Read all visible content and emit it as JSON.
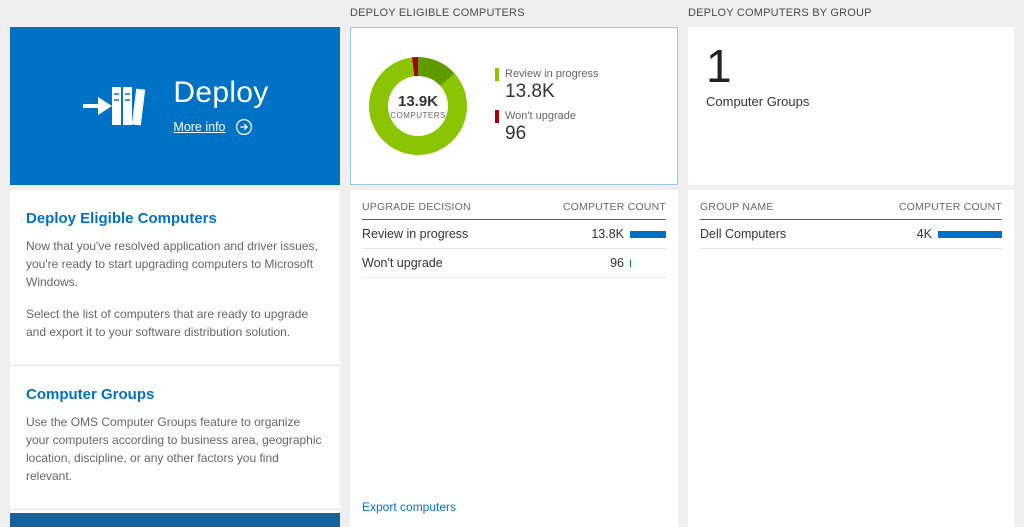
{
  "colors": {
    "accent_blue": "#0072c6",
    "tile_footer_blue": "#15639c",
    "count_bar_blue": "#0072c6",
    "chart_green": "#8bc400",
    "chart_dark_green": "#5f9b00",
    "chart_red": "#a80000"
  },
  "left_panel": {
    "tile": {
      "title": "Deploy",
      "more_info": "More info",
      "bg": "#0072c6"
    },
    "sections": [
      {
        "heading": "Deploy Eligible Computers",
        "paragraphs": [
          "Now that you've resolved application and driver issues, you're ready to start upgrading computers to Microsoft Windows.",
          "Select the list of computers that are ready to upgrade and export it to your software distribution solution."
        ]
      },
      {
        "heading": "Computer Groups",
        "paragraphs": [
          "Use the OMS Computer Groups feature to organize your computers according to business area, geographic location, discipline, or any other factors you find relevant."
        ]
      }
    ]
  },
  "middle_panel": {
    "header": "DEPLOY ELIGIBLE COMPUTERS",
    "donut": {
      "center_value": "13.9K",
      "center_label": "COMPUTERS",
      "segments": [
        {
          "color": "#5f9b00",
          "to": 48
        },
        {
          "color": "#8bc400",
          "to": 353
        },
        {
          "color": "#a80000",
          "to": 360
        }
      ],
      "legend": [
        {
          "label": "Review in progress",
          "value": "13.8K",
          "color": "#8bc400"
        },
        {
          "label": "Won't upgrade",
          "value": "96",
          "color": "#a80000"
        }
      ]
    },
    "table": {
      "columns": [
        "UPGRADE DECISION",
        "COMPUTER COUNT"
      ],
      "rows": [
        {
          "label": "Review in progress",
          "value": "13.8K",
          "bar_pct": 100
        },
        {
          "label": "Won't upgrade",
          "value": "96",
          "bar_pct": 4
        }
      ]
    },
    "footer_link": "Export computers"
  },
  "right_panel": {
    "header": "DEPLOY COMPUTERS BY GROUP",
    "summary": {
      "value": "1",
      "label": "Computer Groups"
    },
    "table": {
      "columns": [
        "GROUP NAME",
        "COMPUTER COUNT"
      ],
      "rows": [
        {
          "label": "Dell Computers",
          "value": "4K",
          "bar_pct": 100
        }
      ]
    }
  },
  "chart_data": {
    "type": "pie",
    "title": "Deploy Eligible Computers",
    "center_value": "13.9K",
    "center_label": "COMPUTERS",
    "slices": [
      {
        "label": "Review in progress",
        "value": 13800,
        "color": "#8bc400"
      },
      {
        "label": "Won't upgrade",
        "value": 96,
        "color": "#a80000"
      }
    ],
    "legend_position": "right"
  }
}
